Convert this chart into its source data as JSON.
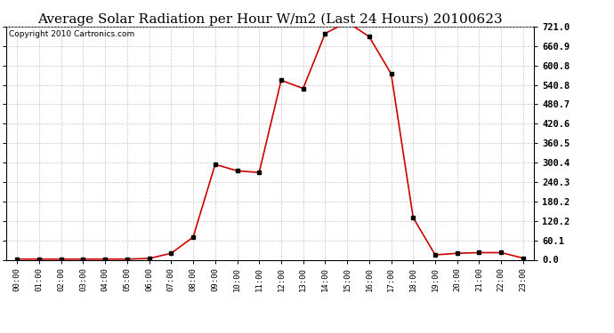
{
  "title": "Average Solar Radiation per Hour W/m2 (Last 24 Hours) 20100623",
  "copyright": "Copyright 2010 Cartronics.com",
  "hours": [
    "00:00",
    "01:00",
    "02:00",
    "03:00",
    "04:00",
    "05:00",
    "06:00",
    "07:00",
    "08:00",
    "09:00",
    "10:00",
    "11:00",
    "12:00",
    "13:00",
    "14:00",
    "15:00",
    "16:00",
    "17:00",
    "18:00",
    "19:00",
    "20:00",
    "21:00",
    "22:00",
    "23:00"
  ],
  "values": [
    2,
    2,
    2,
    2,
    2,
    2,
    4,
    20,
    70,
    295,
    275,
    270,
    555,
    530,
    700,
    735,
    690,
    575,
    130,
    15,
    20,
    22,
    22,
    5
  ],
  "line_color": "#cc0000",
  "marker_color": "#000000",
  "bg_color": "#ffffff",
  "grid_color": "#c8c8c8",
  "ytick_values": [
    0.0,
    60.1,
    120.2,
    180.2,
    240.3,
    300.4,
    360.5,
    420.6,
    480.7,
    540.8,
    600.8,
    660.9,
    721.0
  ],
  "ytick_labels": [
    "0.0",
    "60.1",
    "120.2",
    "180.2",
    "240.3",
    "300.4",
    "360.5",
    "420.6",
    "480.7",
    "540.8",
    "600.8",
    "660.9",
    "721.0"
  ],
  "ylim_min": 0.0,
  "ylim_max": 721.0,
  "title_fontsize": 11,
  "copyright_fontsize": 6.5,
  "xtick_fontsize": 6.5,
  "ytick_fontsize": 7.5
}
